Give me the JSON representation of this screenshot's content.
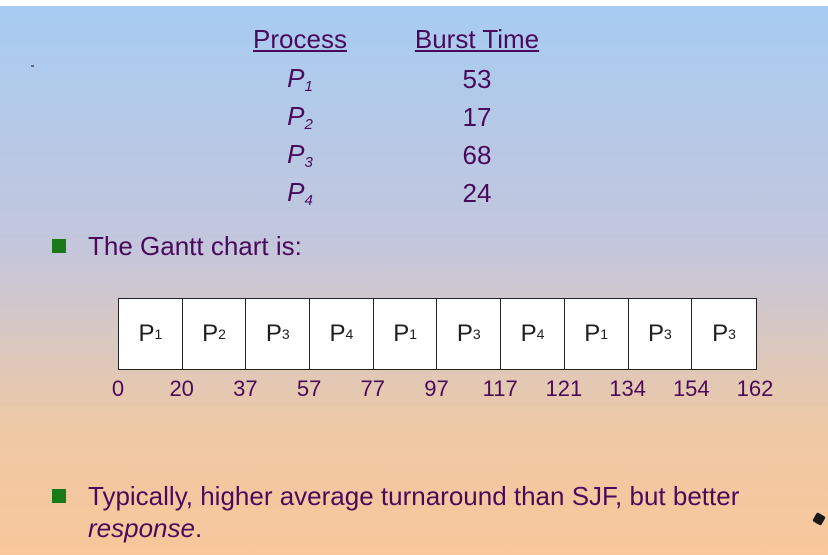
{
  "table": {
    "headers": {
      "process": "Process",
      "burst": "Burst Time"
    },
    "rows": [
      {
        "name": "P",
        "sub": "1",
        "burst": "53"
      },
      {
        "name": "P",
        "sub": "2",
        "burst": "17"
      },
      {
        "name": "P",
        "sub": "3",
        "burst": "68"
      },
      {
        "name": "P",
        "sub": "4",
        "burst": "24"
      }
    ]
  },
  "bullets": {
    "gantt_intro": "The Gantt chart is:",
    "summary_main": "Typically, higher average turnaround than SJF, but better",
    "summary_emph": "response",
    "summary_end": "."
  },
  "chart_data": {
    "type": "gantt",
    "segments": [
      {
        "process": "P",
        "sub": "1",
        "start": 0,
        "end": 20
      },
      {
        "process": "P",
        "sub": "2",
        "start": 20,
        "end": 37
      },
      {
        "process": "P",
        "sub": "3",
        "start": 37,
        "end": 57
      },
      {
        "process": "P",
        "sub": "4",
        "start": 57,
        "end": 77
      },
      {
        "process": "P",
        "sub": "1",
        "start": 77,
        "end": 97
      },
      {
        "process": "P",
        "sub": "3",
        "start": 97,
        "end": 117
      },
      {
        "process": "P",
        "sub": "4",
        "start": 117,
        "end": 121
      },
      {
        "process": "P",
        "sub": "1",
        "start": 121,
        "end": 134
      },
      {
        "process": "P",
        "sub": "3",
        "start": 134,
        "end": 154
      },
      {
        "process": "P",
        "sub": "3",
        "start": 154,
        "end": 162
      }
    ],
    "ticks": [
      0,
      20,
      37,
      57,
      77,
      97,
      117,
      121,
      134,
      154,
      162
    ]
  }
}
